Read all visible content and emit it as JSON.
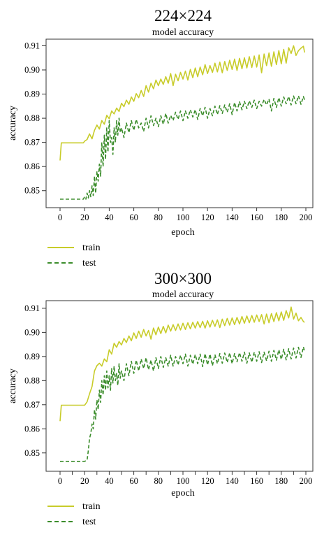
{
  "chart_data": [
    {
      "type": "line",
      "title": "224×224",
      "subtitle": "model accuracy",
      "xlabel": "epoch",
      "ylabel": "accuracy",
      "xlim": [
        0,
        200
      ],
      "ylim": [
        0.845,
        0.911
      ],
      "xticks": [
        0,
        20,
        40,
        60,
        80,
        100,
        120,
        140,
        160,
        180,
        200
      ],
      "yticks": [
        0.85,
        0.86,
        0.87,
        0.88,
        0.89,
        0.9,
        0.91
      ],
      "legend": "bottom-left-outside",
      "grid": false,
      "series": [
        {
          "name": "train",
          "style": "solid",
          "color": "#c8cc2a",
          "x": [
            0,
            1,
            2,
            5,
            10,
            15,
            19,
            20,
            22,
            24,
            26,
            28,
            30,
            32,
            34,
            36,
            38,
            40,
            42,
            44,
            46,
            48,
            50,
            52,
            54,
            56,
            58,
            60,
            62,
            64,
            66,
            68,
            70,
            72,
            74,
            76,
            78,
            80,
            82,
            84,
            86,
            88,
            90,
            92,
            94,
            96,
            98,
            100,
            102,
            104,
            106,
            108,
            110,
            112,
            114,
            116,
            118,
            120,
            122,
            124,
            126,
            128,
            130,
            132,
            134,
            136,
            138,
            140,
            142,
            144,
            146,
            148,
            150,
            152,
            154,
            156,
            158,
            160,
            162,
            164,
            166,
            168,
            170,
            172,
            174,
            176,
            178,
            180,
            182,
            184,
            186,
            188,
            190,
            192,
            194,
            196,
            198,
            199
          ],
          "values": [
            0.8625,
            0.8698,
            0.8698,
            0.8698,
            0.8698,
            0.8698,
            0.8698,
            0.8705,
            0.8712,
            0.8735,
            0.8715,
            0.875,
            0.8772,
            0.8755,
            0.879,
            0.8775,
            0.8812,
            0.8798,
            0.883,
            0.8818,
            0.8842,
            0.8828,
            0.8862,
            0.8848,
            0.8875,
            0.8858,
            0.8888,
            0.887,
            0.8902,
            0.8885,
            0.8915,
            0.889,
            0.8935,
            0.8908,
            0.8945,
            0.8922,
            0.8958,
            0.8935,
            0.8962,
            0.894,
            0.8972,
            0.8945,
            0.8985,
            0.8935,
            0.8982,
            0.8955,
            0.899,
            0.8962,
            0.8995,
            0.8958,
            0.9002,
            0.8968,
            0.9008,
            0.8972,
            0.9012,
            0.898,
            0.9022,
            0.8985,
            0.9018,
            0.899,
            0.9028,
            0.8992,
            0.9032,
            0.8988,
            0.9035,
            0.8998,
            0.904,
            0.9002,
            0.9045,
            0.8998,
            0.9048,
            0.9005,
            0.905,
            0.9008,
            0.9055,
            0.901,
            0.9058,
            0.9012,
            0.9062,
            0.8988,
            0.9066,
            0.9018,
            0.907,
            0.9015,
            0.9075,
            0.9022,
            0.908,
            0.9025,
            0.9085,
            0.9028,
            0.9092,
            0.9068,
            0.91,
            0.906,
            0.908,
            0.909,
            0.9098,
            0.9072
          ]
        },
        {
          "name": "test",
          "style": "dashed",
          "color": "#3a8c2a",
          "x": [
            0,
            5,
            10,
            15,
            19,
            20,
            21,
            22,
            23,
            24,
            25,
            26,
            27,
            28,
            29,
            30,
            31,
            32,
            33,
            34,
            35,
            36,
            37,
            38,
            39,
            40,
            41,
            42,
            43,
            44,
            45,
            46,
            47,
            48,
            49,
            50,
            52,
            54,
            56,
            58,
            60,
            62,
            64,
            66,
            68,
            70,
            72,
            74,
            76,
            78,
            80,
            82,
            84,
            86,
            88,
            90,
            92,
            94,
            96,
            98,
            100,
            102,
            104,
            106,
            108,
            110,
            112,
            114,
            116,
            118,
            120,
            122,
            124,
            126,
            128,
            130,
            132,
            134,
            136,
            138,
            140,
            142,
            144,
            146,
            148,
            150,
            152,
            154,
            156,
            158,
            160,
            162,
            164,
            166,
            168,
            170,
            172,
            174,
            176,
            178,
            180,
            182,
            184,
            186,
            188,
            190,
            192,
            194,
            196,
            198,
            199
          ],
          "values": [
            0.8465,
            0.8465,
            0.8465,
            0.8465,
            0.8465,
            0.8475,
            0.8465,
            0.849,
            0.847,
            0.85,
            0.8475,
            0.852,
            0.848,
            0.856,
            0.849,
            0.858,
            0.854,
            0.861,
            0.856,
            0.87,
            0.86,
            0.873,
            0.863,
            0.876,
            0.866,
            0.879,
            0.87,
            0.872,
            0.865,
            0.876,
            0.87,
            0.879,
            0.873,
            0.88,
            0.874,
            0.876,
            0.872,
            0.878,
            0.874,
            0.879,
            0.875,
            0.8795,
            0.876,
            0.878,
            0.8745,
            0.88,
            0.876,
            0.881,
            0.877,
            0.88,
            0.8765,
            0.881,
            0.8775,
            0.882,
            0.878,
            0.8812,
            0.879,
            0.8825,
            0.8795,
            0.883,
            0.879,
            0.883,
            0.88,
            0.8835,
            0.8805,
            0.8835,
            0.8795,
            0.884,
            0.881,
            0.8845,
            0.88,
            0.884,
            0.881,
            0.885,
            0.8815,
            0.8852,
            0.882,
            0.8855,
            0.8825,
            0.886,
            0.8815,
            0.8865,
            0.883,
            0.8868,
            0.8835,
            0.887,
            0.884,
            0.8872,
            0.8845,
            0.8875,
            0.884,
            0.887,
            0.885,
            0.8878,
            0.8855,
            0.888,
            0.883,
            0.8882,
            0.8845,
            0.8885,
            0.885,
            0.8888,
            0.886,
            0.889,
            0.8855,
            0.8892,
            0.886,
            0.8893,
            0.8858,
            0.889,
            0.8875
          ]
        }
      ]
    },
    {
      "type": "line",
      "title": "300×300",
      "subtitle": "model accuracy",
      "xlabel": "epoch",
      "ylabel": "accuracy",
      "xlim": [
        0,
        200
      ],
      "ylim": [
        0.845,
        0.912
      ],
      "xticks": [
        0,
        10,
        20,
        30,
        40,
        50,
        60,
        70,
        80,
        90,
        100,
        110,
        120,
        130,
        140,
        150,
        160,
        170,
        180,
        190,
        200
      ],
      "xticklabels": [
        "0",
        "",
        "20",
        "",
        "40",
        "",
        "60",
        "",
        "80",
        "",
        "100",
        "",
        "120",
        "",
        "140",
        "",
        "160",
        "",
        "180",
        "",
        "200"
      ],
      "yticks": [
        0.85,
        0.86,
        0.87,
        0.88,
        0.89,
        0.9,
        0.91
      ],
      "legend": "bottom-left-outside",
      "grid": false,
      "series": [
        {
          "name": "train",
          "style": "solid",
          "color": "#c8cc2a",
          "x": [
            0,
            1,
            2,
            5,
            10,
            15,
            20,
            22,
            24,
            26,
            28,
            30,
            32,
            34,
            36,
            38,
            40,
            42,
            44,
            46,
            48,
            50,
            52,
            54,
            56,
            58,
            60,
            62,
            64,
            66,
            68,
            70,
            72,
            74,
            76,
            78,
            80,
            82,
            84,
            86,
            88,
            90,
            92,
            94,
            96,
            98,
            100,
            102,
            104,
            106,
            108,
            110,
            112,
            114,
            116,
            118,
            120,
            122,
            124,
            126,
            128,
            130,
            132,
            134,
            136,
            138,
            140,
            142,
            144,
            146,
            148,
            150,
            152,
            154,
            156,
            158,
            160,
            162,
            164,
            166,
            168,
            170,
            172,
            174,
            176,
            178,
            180,
            182,
            184,
            186,
            188,
            190,
            192,
            194,
            196,
            198,
            199
          ],
          "values": [
            0.8632,
            0.8698,
            0.8698,
            0.8698,
            0.8698,
            0.8698,
            0.8698,
            0.8712,
            0.8745,
            0.8775,
            0.884,
            0.8862,
            0.8872,
            0.886,
            0.889,
            0.8878,
            0.8928,
            0.891,
            0.8955,
            0.8938,
            0.8962,
            0.8948,
            0.8975,
            0.8958,
            0.8985,
            0.8965,
            0.8998,
            0.8975,
            0.9005,
            0.898,
            0.9012,
            0.8985,
            0.9008,
            0.8972,
            0.9018,
            0.899,
            0.9022,
            0.8995,
            0.9025,
            0.8998,
            0.903,
            0.9005,
            0.9032,
            0.9008,
            0.9035,
            0.901,
            0.9038,
            0.9012,
            0.904,
            0.9015,
            0.9042,
            0.9018,
            0.9045,
            0.902,
            0.9046,
            0.9018,
            0.9048,
            0.9022,
            0.905,
            0.9025,
            0.9052,
            0.902,
            0.9055,
            0.9028,
            0.9058,
            0.903,
            0.906,
            0.9032,
            0.9062,
            0.9035,
            0.9066,
            0.9038,
            0.9068,
            0.904,
            0.907,
            0.9042,
            0.9072,
            0.9045,
            0.9074,
            0.9035,
            0.9076,
            0.904,
            0.9078,
            0.9045,
            0.9082,
            0.9048,
            0.9085,
            0.905,
            0.909,
            0.906,
            0.9105,
            0.9055,
            0.908,
            0.9048,
            0.9062,
            0.9045,
            0.9042
          ]
        },
        {
          "name": "test",
          "style": "dashed",
          "color": "#3a8c2a",
          "x": [
            0,
            5,
            10,
            15,
            20,
            22,
            23,
            24,
            25,
            26,
            27,
            28,
            29,
            30,
            31,
            32,
            33,
            34,
            35,
            36,
            37,
            38,
            39,
            40,
            41,
            42,
            43,
            44,
            45,
            46,
            47,
            48,
            49,
            50,
            52,
            54,
            56,
            58,
            60,
            62,
            64,
            66,
            68,
            70,
            72,
            74,
            76,
            78,
            80,
            82,
            84,
            86,
            88,
            90,
            92,
            94,
            96,
            98,
            100,
            102,
            104,
            106,
            108,
            110,
            112,
            114,
            116,
            118,
            120,
            122,
            124,
            126,
            128,
            130,
            132,
            134,
            136,
            138,
            140,
            142,
            144,
            146,
            148,
            150,
            152,
            154,
            156,
            158,
            160,
            162,
            164,
            166,
            168,
            170,
            172,
            174,
            176,
            178,
            180,
            182,
            184,
            186,
            188,
            190,
            192,
            194,
            196,
            198,
            199
          ],
          "values": [
            0.8465,
            0.8465,
            0.8465,
            0.8465,
            0.8465,
            0.847,
            0.851,
            0.856,
            0.858,
            0.862,
            0.86,
            0.868,
            0.864,
            0.872,
            0.868,
            0.876,
            0.871,
            0.88,
            0.874,
            0.882,
            0.876,
            0.884,
            0.877,
            0.882,
            0.876,
            0.885,
            0.879,
            0.886,
            0.88,
            0.883,
            0.878,
            0.887,
            0.881,
            0.884,
            0.88,
            0.887,
            0.882,
            0.888,
            0.883,
            0.8885,
            0.884,
            0.889,
            0.885,
            0.8895,
            0.8845,
            0.8885,
            0.884,
            0.8895,
            0.885,
            0.89,
            0.8855,
            0.8895,
            0.886,
            0.8905,
            0.886,
            0.89,
            0.8865,
            0.8905,
            0.887,
            0.891,
            0.886,
            0.8905,
            0.8868,
            0.8908,
            0.887,
            0.891,
            0.8858,
            0.8912,
            0.8865,
            0.891,
            0.8862,
            0.8908,
            0.887,
            0.8912,
            0.8872,
            0.8914,
            0.8875,
            0.8915,
            0.887,
            0.8912,
            0.8878,
            0.8916,
            0.888,
            0.8918,
            0.8872,
            0.8915,
            0.8876,
            0.8918,
            0.888,
            0.892,
            0.8875,
            0.8918,
            0.8882,
            0.8922,
            0.888,
            0.8925,
            0.8885,
            0.8928,
            0.8888,
            0.893,
            0.8886,
            0.8932,
            0.889,
            0.8935,
            0.8894,
            0.8938,
            0.8896,
            0.894,
            0.892
          ]
        }
      ]
    }
  ]
}
